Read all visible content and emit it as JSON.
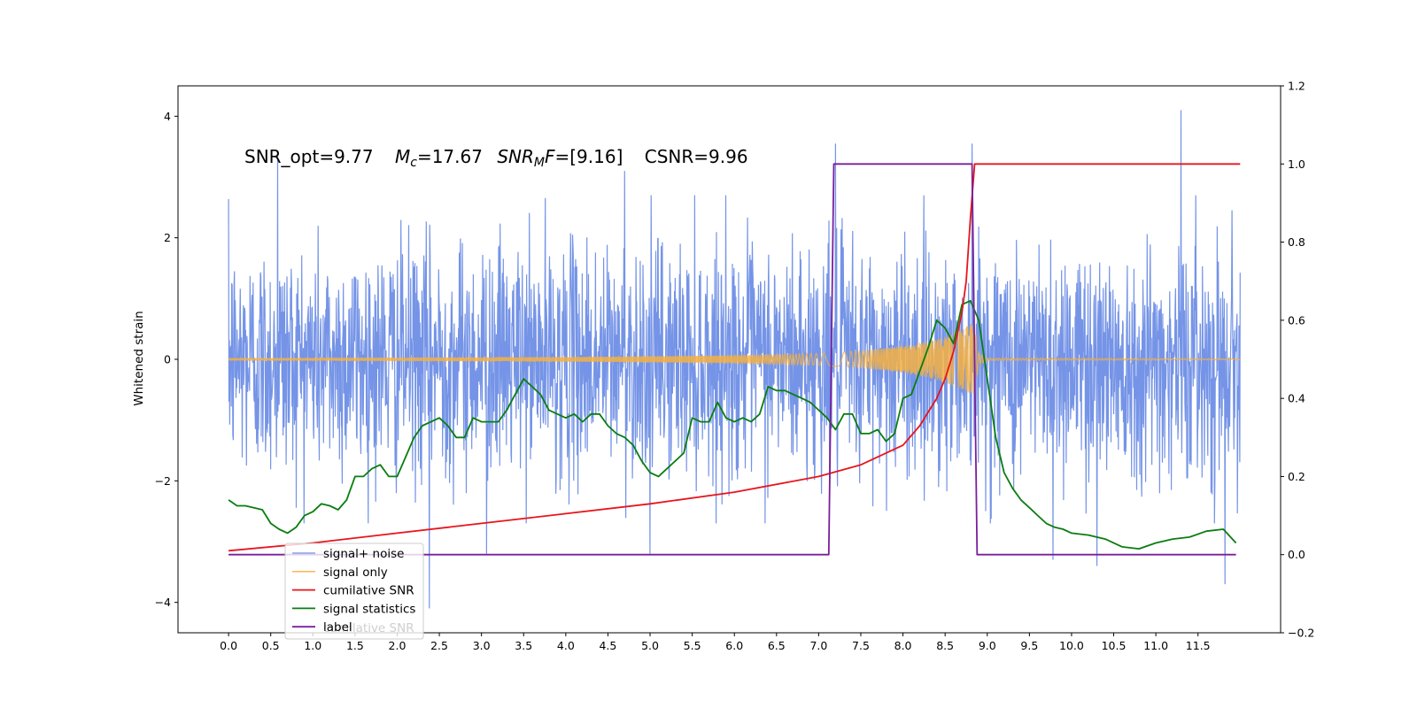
{
  "chart_data": {
    "type": "line",
    "title": "",
    "xlabel": "",
    "ylabel": "Whitened strain",
    "ylabel_right": "",
    "xlim": [
      -0.6,
      12.48
    ],
    "ylim": [
      -4.5,
      4.5
    ],
    "ylim_right": [
      -0.2,
      1.2
    ],
    "x_ticks": [
      0.0,
      0.5,
      1.0,
      1.5,
      2.0,
      2.5,
      3.0,
      3.5,
      4.0,
      4.5,
      5.0,
      5.5,
      6.0,
      6.5,
      7.0,
      7.5,
      8.0,
      8.5,
      9.0,
      9.5,
      10.0,
      10.5,
      11.0,
      11.5
    ],
    "x_tick_labels": [
      "0.0",
      "0.5",
      "1.0",
      "1.5",
      "2.0",
      "2.5",
      "3.0",
      "3.5",
      "4.0",
      "4.5",
      "5.0",
      "5.5",
      "6.0",
      "6.5",
      "7.0",
      "7.5",
      "8.0",
      "8.5",
      "9.0",
      "9.5",
      "10.0",
      "10.5",
      "11.0",
      "11.5"
    ],
    "y_ticks": [
      -4,
      -2,
      0,
      2,
      4
    ],
    "y_tick_labels": [
      "−4",
      "−2",
      "0",
      "2",
      "4"
    ],
    "y_ticks_right": [
      -0.2,
      0.0,
      0.2,
      0.4,
      0.6,
      0.8,
      1.0,
      1.2
    ],
    "y_tick_labels_right": [
      "−0.2",
      "0.0",
      "0.2",
      "0.4",
      "0.6",
      "0.8",
      "1.0",
      "1.2"
    ],
    "grid": false,
    "legend_position": "bottom-left",
    "annotation": {
      "snr_opt": "SNR_opt=9.77",
      "mc_symbol": "M",
      "mc_sub": "c",
      "mc_value": "=17.67",
      "snrmf_symbol": "SNR",
      "snrmf_sub": "M",
      "snrmf_f": "F",
      "snrmf_value": "=[9.16]",
      "csnr": "CSNR=9.96"
    },
    "series": [
      {
        "name": "signal+ noise",
        "axis": "left",
        "color": "#6e8ee6",
        "description_visual": "dense noise, roughly ±1.3 with spikes to about ±3.5",
        "x_range": [
          0.0,
          12.0
        ],
        "envelope_y": [
          -2.5,
          2.5
        ],
        "spikes": [
          [
            0.58,
            3.4
          ],
          [
            1.05,
            2.9
          ],
          [
            2.38,
            -4.1
          ],
          [
            3.06,
            -3.2
          ],
          [
            4.7,
            3.1
          ],
          [
            5.0,
            -3.2
          ],
          [
            7.2,
            3.55
          ],
          [
            8.82,
            3.55
          ],
          [
            9.78,
            -3.3
          ],
          [
            10.3,
            -3.4
          ],
          [
            11.3,
            4.1
          ],
          [
            11.82,
            -3.7
          ]
        ]
      },
      {
        "name": "signal only",
        "axis": "left",
        "color": "#f5b042",
        "description_visual": "chirp with amplitude growing to about ±0.5 near 8.85, then ringdown",
        "x": [
          0.0,
          1.0,
          2.0,
          3.0,
          4.0,
          5.0,
          6.0,
          6.5,
          7.0,
          7.5,
          8.0,
          8.3,
          8.5,
          8.7,
          8.8,
          8.85,
          8.9,
          9.0,
          12.0
        ],
        "amplitude": [
          0.02,
          0.025,
          0.03,
          0.035,
          0.04,
          0.05,
          0.065,
          0.08,
          0.1,
          0.14,
          0.22,
          0.3,
          0.38,
          0.5,
          0.58,
          0.55,
          0.1,
          0.02,
          0.01
        ]
      },
      {
        "name": "cumilative SNR",
        "axis": "right",
        "color": "#e8141c",
        "x": [
          0.0,
          1.0,
          2.0,
          3.0,
          4.0,
          5.0,
          6.0,
          7.0,
          7.5,
          7.8,
          8.0,
          8.2,
          8.4,
          8.5,
          8.6,
          8.7,
          8.75,
          8.8,
          8.85,
          12.0
        ],
        "values": [
          0.01,
          0.03,
          0.055,
          0.08,
          0.105,
          0.13,
          0.16,
          0.2,
          0.23,
          0.26,
          0.28,
          0.33,
          0.4,
          0.45,
          0.52,
          0.62,
          0.7,
          0.86,
          1.0,
          1.0
        ]
      },
      {
        "name": "signal statistics",
        "axis": "right",
        "color": "#0a7d10",
        "x": [
          0.0,
          0.1,
          0.2,
          0.3,
          0.4,
          0.5,
          0.6,
          0.7,
          0.8,
          0.9,
          1.0,
          1.1,
          1.2,
          1.3,
          1.4,
          1.5,
          1.6,
          1.7,
          1.8,
          1.9,
          2.0,
          2.1,
          2.2,
          2.3,
          2.4,
          2.5,
          2.6,
          2.7,
          2.8,
          2.9,
          3.0,
          3.1,
          3.2,
          3.3,
          3.4,
          3.5,
          3.6,
          3.7,
          3.8,
          3.9,
          4.0,
          4.1,
          4.2,
          4.3,
          4.4,
          4.5,
          4.6,
          4.7,
          4.8,
          4.9,
          5.0,
          5.1,
          5.2,
          5.3,
          5.4,
          5.5,
          5.6,
          5.7,
          5.8,
          5.9,
          6.0,
          6.1,
          6.2,
          6.3,
          6.4,
          6.5,
          6.6,
          6.7,
          6.8,
          6.9,
          7.0,
          7.1,
          7.2,
          7.3,
          7.4,
          7.5,
          7.6,
          7.7,
          7.8,
          7.9,
          8.0,
          8.1,
          8.2,
          8.3,
          8.4,
          8.5,
          8.6,
          8.7,
          8.8,
          8.9,
          9.0,
          9.1,
          9.2,
          9.3,
          9.4,
          9.5,
          9.6,
          9.7,
          9.8,
          9.9,
          10.0,
          10.2,
          10.4,
          10.6,
          10.8,
          11.0,
          11.2,
          11.4,
          11.6,
          11.8,
          11.95
        ],
        "values": [
          0.14,
          0.125,
          0.125,
          0.12,
          0.115,
          0.08,
          0.065,
          0.055,
          0.07,
          0.1,
          0.11,
          0.13,
          0.125,
          0.115,
          0.14,
          0.2,
          0.2,
          0.22,
          0.23,
          0.2,
          0.2,
          0.25,
          0.3,
          0.33,
          0.34,
          0.35,
          0.33,
          0.3,
          0.3,
          0.35,
          0.34,
          0.34,
          0.34,
          0.37,
          0.41,
          0.45,
          0.43,
          0.41,
          0.37,
          0.36,
          0.35,
          0.36,
          0.34,
          0.36,
          0.36,
          0.33,
          0.31,
          0.3,
          0.28,
          0.24,
          0.21,
          0.2,
          0.22,
          0.24,
          0.26,
          0.35,
          0.34,
          0.34,
          0.39,
          0.35,
          0.34,
          0.35,
          0.34,
          0.36,
          0.43,
          0.42,
          0.42,
          0.41,
          0.4,
          0.39,
          0.37,
          0.35,
          0.32,
          0.36,
          0.36,
          0.31,
          0.31,
          0.32,
          0.29,
          0.31,
          0.4,
          0.41,
          0.47,
          0.53,
          0.6,
          0.58,
          0.54,
          0.64,
          0.65,
          0.6,
          0.45,
          0.3,
          0.21,
          0.17,
          0.14,
          0.12,
          0.1,
          0.08,
          0.07,
          0.065,
          0.055,
          0.05,
          0.04,
          0.02,
          0.015,
          0.03,
          0.04,
          0.045,
          0.06,
          0.065,
          0.03
        ]
      },
      {
        "name": "label",
        "axis": "right",
        "color": "#7a1f9c",
        "x": [
          0.0,
          7.12,
          7.18,
          8.82,
          8.88,
          11.95
        ],
        "values": [
          0.0,
          0.0,
          1.0,
          1.0,
          0.0,
          0.0
        ]
      }
    ],
    "legend_entries": [
      "signal+ noise",
      "signal only",
      "cumilative SNR",
      "signal statistics",
      "label"
    ],
    "legend_hidden_text": "cumilative SNR"
  }
}
